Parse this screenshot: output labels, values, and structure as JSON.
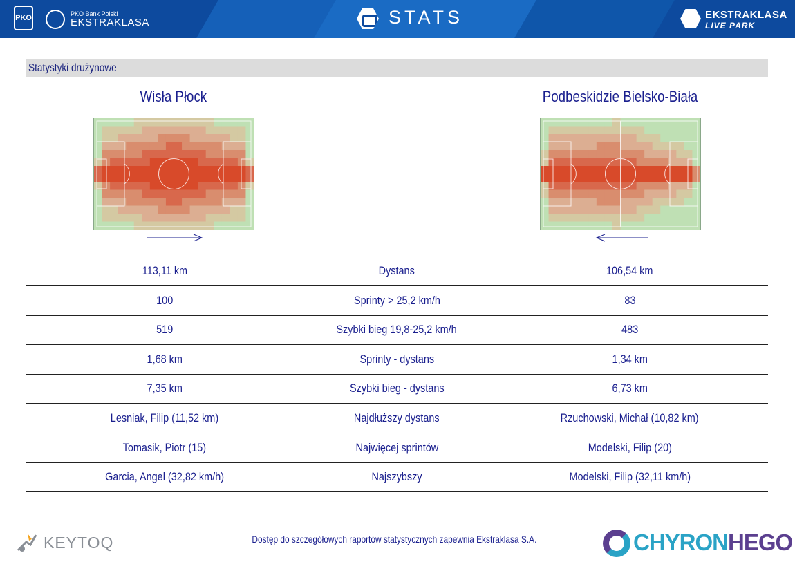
{
  "header": {
    "pko_label": "PKO",
    "brand_small": "PKO Bank Polski",
    "brand_big": "EKSTRAKLASA",
    "stats_label": "STATS",
    "live_park_top": "EKSTRAKLASA",
    "live_park_bottom": "LIVE PARK"
  },
  "section": {
    "title": "Statystyki drużynowe"
  },
  "teams": {
    "home": {
      "name": "Wisła Płock",
      "direction": "right"
    },
    "away": {
      "name": "Podbeskidzie Bielsko-Biała",
      "direction": "left"
    }
  },
  "colors": {
    "accent_text": "#1a1f8e",
    "header_bg": "#0d4a9e",
    "heat_high": "#d84a2a",
    "pitch_base": "#b7dcb0"
  },
  "stats": [
    {
      "home": "113,11 km",
      "label": "Dystans",
      "away": "106,54 km"
    },
    {
      "home": "100",
      "label": "Sprinty > 25,2 km/h",
      "away": "83"
    },
    {
      "home": "519",
      "label": "Szybki bieg 19,8-25,2 km/h",
      "away": "483"
    },
    {
      "home": "1,68 km",
      "label": "Sprinty - dystans",
      "away": "1,34 km"
    },
    {
      "home": "7,35 km",
      "label": "Szybki bieg - dystans",
      "away": "6,73 km"
    },
    {
      "home": "Lesniak, Filip (11,52 km)",
      "label": "Najdłuższy dystans",
      "away": "Rzuchowski, Michał (10,82 km)"
    },
    {
      "home": "Tomasik, Piotr (15)",
      "label": "Najwięcej sprintów",
      "away": "Modelski, Filip (20)"
    },
    {
      "home": "Garcia, Angel (32,82 km/h)",
      "label": "Najszybszy",
      "away": "Modelski, Filip (32,11 km/h)"
    }
  ],
  "footer": {
    "note": "Dostęp do szczegółowych raportów statystycznych zapewnia Ekstraklasa S.A.",
    "left_brand": "KEYTOQ",
    "right_brand_a": "CHYRON",
    "right_brand_b": "HEGO"
  }
}
